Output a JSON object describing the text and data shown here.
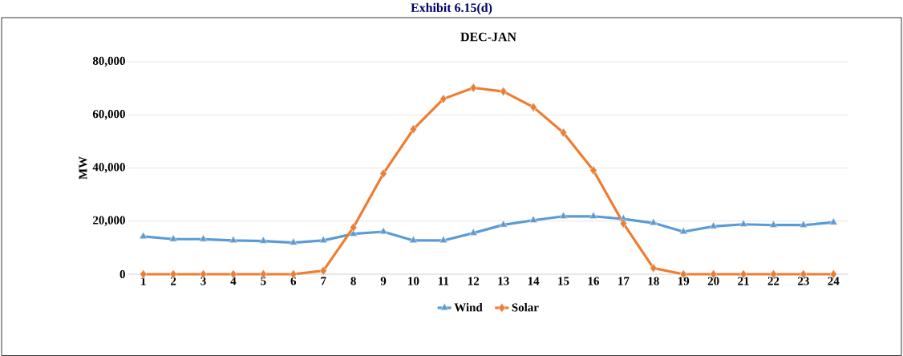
{
  "chart_data": {
    "type": "line",
    "title": "Exhibit 6.15(d)",
    "subtitle": "DEC-JAN",
    "ylabel": "MW",
    "categories": [
      "1",
      "2",
      "3",
      "4",
      "5",
      "6",
      "7",
      "8",
      "9",
      "10",
      "11",
      "12",
      "13",
      "14",
      "15",
      "16",
      "17",
      "18",
      "19",
      "20",
      "21",
      "22",
      "23",
      "24"
    ],
    "series": [
      {
        "name": "Wind",
        "color": "#5b9bd5",
        "marker": "triangle",
        "values": [
          14200,
          13200,
          13200,
          12700,
          12500,
          11900,
          12700,
          15200,
          16000,
          12700,
          12700,
          15500,
          18600,
          20300,
          21800,
          21800,
          20800,
          19300,
          16000,
          18000,
          18800,
          18500,
          18500,
          19500
        ]
      },
      {
        "name": "Solar",
        "color": "#ed7d31",
        "marker": "diamond",
        "values": [
          0,
          0,
          0,
          0,
          0,
          0,
          1300,
          17600,
          37900,
          54600,
          66000,
          70200,
          68800,
          62900,
          53300,
          39100,
          19100,
          2300,
          0,
          0,
          0,
          0,
          0,
          0
        ]
      }
    ],
    "ylim": [
      0,
      80000
    ],
    "yticks": [
      {
        "value": 0,
        "label": "0"
      },
      {
        "value": 20000,
        "label": "20,000"
      },
      {
        "value": 40000,
        "label": "40,000"
      },
      {
        "value": 60000,
        "label": "60,000"
      },
      {
        "value": 80000,
        "label": "80,000"
      }
    ],
    "grid": "y",
    "legend": "bottom",
    "line_style": "solid"
  }
}
